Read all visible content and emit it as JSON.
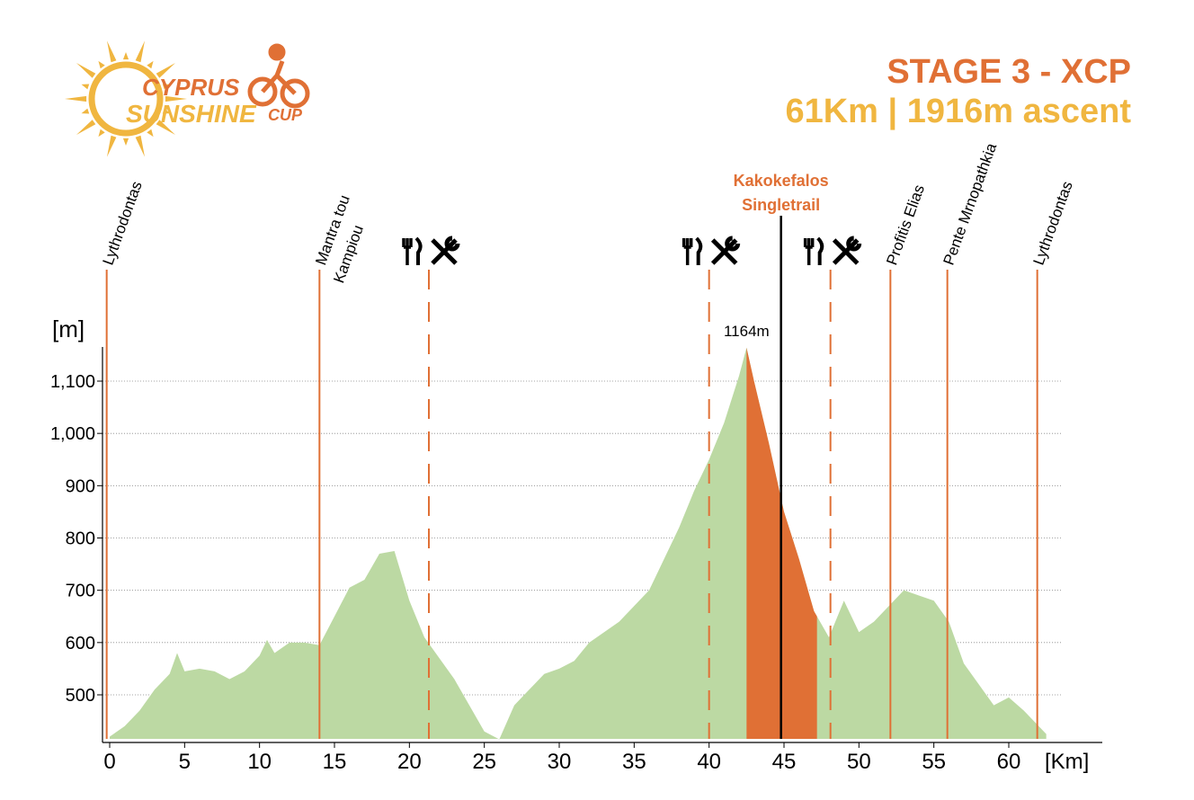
{
  "header": {
    "logo_line1": "CYPRUS",
    "logo_line2": "SUNSHINE",
    "logo_line3": "CUP",
    "title": "STAGE 3 - XCP",
    "subtitle": "61Km | 1916m ascent"
  },
  "colors": {
    "accent_orange": "#e07035",
    "accent_yellow": "#f0b640",
    "profile_green": "#bcd9a3",
    "singletrail_orange": "#e07035"
  },
  "chart_data": {
    "type": "area",
    "xlabel": "[Km]",
    "ylabel": "[m]",
    "xlim": [
      0,
      63
    ],
    "ylim": [
      415,
      1175
    ],
    "xticks": [
      0,
      5,
      10,
      15,
      20,
      25,
      30,
      35,
      40,
      45,
      50,
      55,
      60
    ],
    "xtick_labels": [
      "0",
      "5",
      "10",
      "15",
      "20",
      "25",
      "30",
      "35",
      "40",
      "45",
      "50",
      "55",
      "60"
    ],
    "yticks": [
      500,
      600,
      700,
      800,
      900,
      1000,
      1100
    ],
    "ytick_labels": [
      "500",
      "600",
      "700",
      "800",
      "900",
      "1,000",
      "1,100"
    ],
    "grid": "horizontal dotted",
    "x": [
      0,
      1,
      2,
      3,
      4,
      4.5,
      5,
      6,
      7,
      8,
      9,
      10,
      10.5,
      11,
      12,
      13,
      14,
      15,
      16,
      17,
      18,
      19,
      20,
      21,
      22,
      23,
      24,
      25,
      26,
      27,
      28,
      29,
      30,
      31,
      32,
      33,
      34,
      35,
      36,
      37,
      38,
      39,
      40,
      41,
      42,
      42.5,
      43,
      44,
      45,
      46,
      47,
      48,
      49,
      50,
      51,
      52,
      53,
      54,
      55,
      56,
      57,
      58,
      59,
      60,
      61,
      62,
      62.5
    ],
    "y": [
      420,
      440,
      470,
      510,
      540,
      580,
      545,
      550,
      545,
      530,
      545,
      575,
      605,
      580,
      600,
      600,
      595,
      650,
      705,
      720,
      770,
      775,
      680,
      610,
      570,
      530,
      480,
      430,
      415,
      480,
      510,
      540,
      550,
      565,
      600,
      620,
      640,
      670,
      700,
      760,
      820,
      890,
      950,
      1020,
      1110,
      1164,
      1100,
      980,
      850,
      760,
      660,
      610,
      680,
      620,
      640,
      670,
      700,
      690,
      680,
      640,
      560,
      520,
      480,
      495,
      470,
      440,
      425
    ],
    "highlight": {
      "label_line1": "Kakokefalos",
      "label_line2": "Singletrail",
      "x_start": 42.5,
      "x_end": 47.2,
      "marker_x": 44.8
    },
    "peak": {
      "x": 42.5,
      "value": 1164,
      "label": "1164m"
    },
    "locations": [
      {
        "name": "Lythrodontas",
        "line2": "",
        "x": -0.2
      },
      {
        "name": "Mantra tou",
        "line2": "Kampiou",
        "x": 14
      },
      {
        "name": "Profitis Elias",
        "line2": "",
        "x": 52.1
      },
      {
        "name": "Pente Mrnopathkia",
        "line2": "",
        "x": 55.9
      },
      {
        "name": "Lythrodontas",
        "line2": "",
        "x": 61.9
      }
    ],
    "feed_zones": [
      {
        "x": 21.3,
        "icon": "food-and-repair-icon"
      },
      {
        "x": 40,
        "icon": "food-and-repair-icon"
      },
      {
        "x": 48.1,
        "icon": "food-and-repair-icon"
      }
    ]
  }
}
